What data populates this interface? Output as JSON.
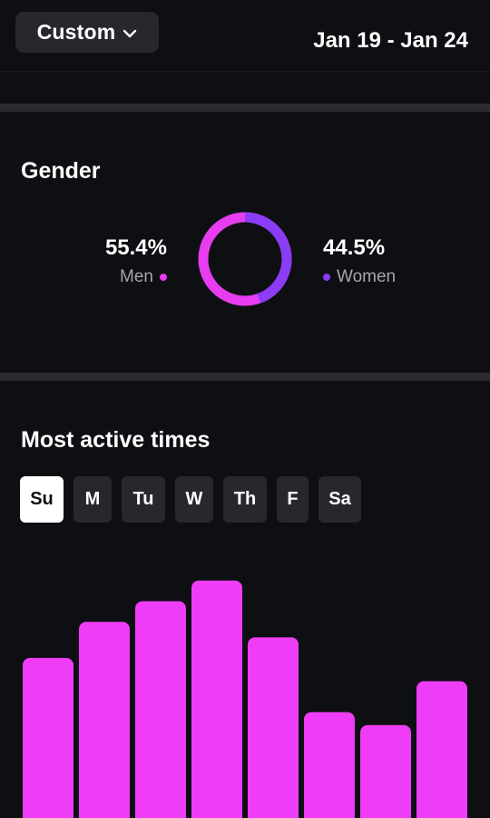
{
  "header": {
    "range_label": "Custom",
    "date_range": "Jan 19 - Jan 24"
  },
  "gender": {
    "title": "Gender",
    "men": {
      "value": "55.4%",
      "label": "Men",
      "color": "#e83cf0"
    },
    "women": {
      "value": "44.5%",
      "label": "Women",
      "color": "#8b3cf5"
    }
  },
  "activity": {
    "title": "Most active times",
    "days": [
      {
        "label": "Su",
        "active": true
      },
      {
        "label": "M",
        "active": false
      },
      {
        "label": "Tu",
        "active": false
      },
      {
        "label": "W",
        "active": false
      },
      {
        "label": "Th",
        "active": false
      },
      {
        "label": "F",
        "active": false
      },
      {
        "label": "Sa",
        "active": false
      }
    ],
    "bar_color": "#ef3cf6"
  },
  "chart_data": {
    "type": "bar",
    "title": "",
    "xlabel": "",
    "ylabel": "",
    "categories": [
      "",
      "",
      "",
      "",
      "",
      "",
      "",
      ""
    ],
    "values": [
      62,
      76,
      84,
      92,
      70,
      41,
      36,
      53
    ],
    "ylim": [
      0,
      100
    ],
    "grid": false,
    "legend": "none"
  }
}
